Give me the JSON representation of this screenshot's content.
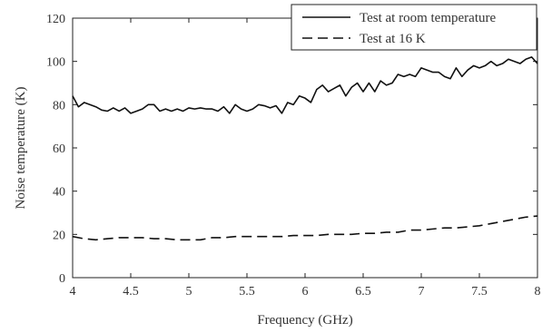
{
  "chart_data": {
    "type": "line",
    "xlabel": "Frequency (GHz)",
    "ylabel": "Noise temperature (K)",
    "xlim": [
      4,
      8
    ],
    "ylim": [
      0,
      120
    ],
    "xticks": [
      "4",
      "4.5",
      "5",
      "5.5",
      "6",
      "6.5",
      "7",
      "7.5",
      "8"
    ],
    "yticks": [
      "0",
      "20",
      "40",
      "60",
      "80",
      "100",
      "120"
    ],
    "grid": false,
    "legend_position": "top-right",
    "series": [
      {
        "name": "Test at room temperature",
        "style": "solid",
        "x": [
          4.0,
          4.05,
          4.1,
          4.15,
          4.2,
          4.25,
          4.3,
          4.35,
          4.4,
          4.45,
          4.5,
          4.55,
          4.6,
          4.65,
          4.7,
          4.75,
          4.8,
          4.85,
          4.9,
          4.95,
          5.0,
          5.05,
          5.1,
          5.15,
          5.2,
          5.25,
          5.3,
          5.35,
          5.4,
          5.45,
          5.5,
          5.55,
          5.6,
          5.65,
          5.7,
          5.75,
          5.8,
          5.85,
          5.9,
          5.95,
          6.0,
          6.05,
          6.1,
          6.15,
          6.2,
          6.25,
          6.3,
          6.35,
          6.4,
          6.45,
          6.5,
          6.55,
          6.6,
          6.65,
          6.7,
          6.75,
          6.8,
          6.85,
          6.9,
          6.95,
          7.0,
          7.05,
          7.1,
          7.15,
          7.2,
          7.25,
          7.3,
          7.35,
          7.4,
          7.45,
          7.5,
          7.55,
          7.6,
          7.65,
          7.7,
          7.75,
          7.8,
          7.85,
          7.9,
          7.95,
          8.0
        ],
        "values": [
          84,
          79,
          81,
          80,
          79,
          77.5,
          77,
          78.5,
          77,
          78.5,
          76,
          77,
          78,
          80,
          80,
          77,
          78,
          77,
          78,
          77,
          78.5,
          78,
          78.5,
          78,
          78,
          77,
          79,
          76,
          80,
          78,
          77,
          78,
          80,
          79.5,
          78.5,
          79.5,
          76,
          81,
          80,
          84,
          83,
          81,
          87,
          89,
          86,
          87.5,
          89,
          84,
          88,
          90,
          86,
          90,
          86,
          91,
          89,
          90,
          94,
          93,
          94,
          93,
          97,
          96,
          95,
          95,
          93,
          92,
          97,
          93,
          96,
          98,
          97,
          98,
          100,
          98,
          99,
          101,
          100,
          99,
          101,
          102,
          99
        ]
      },
      {
        "name": "Test at 16 K",
        "style": "dashed",
        "x": [
          4.0,
          4.1,
          4.2,
          4.3,
          4.4,
          4.5,
          4.6,
          4.7,
          4.8,
          4.9,
          5.0,
          5.1,
          5.2,
          5.3,
          5.4,
          5.5,
          5.6,
          5.7,
          5.8,
          5.9,
          6.0,
          6.1,
          6.2,
          6.3,
          6.4,
          6.5,
          6.6,
          6.7,
          6.8,
          6.9,
          7.0,
          7.1,
          7.2,
          7.3,
          7.4,
          7.5,
          7.6,
          7.7,
          7.8,
          7.9,
          8.0
        ],
        "values": [
          19,
          18,
          17.5,
          18,
          18.5,
          18.5,
          18.5,
          18,
          18,
          17.5,
          17.5,
          17.5,
          18.5,
          18.5,
          19,
          19,
          19,
          19,
          19,
          19.5,
          19.5,
          19.5,
          20,
          20,
          20,
          20.5,
          20.5,
          21,
          21,
          22,
          22,
          22.5,
          23,
          23,
          23.5,
          24,
          25,
          26,
          27,
          28,
          28.5
        ]
      }
    ]
  }
}
